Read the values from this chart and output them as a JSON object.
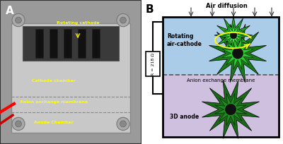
{
  "panel_a_label": "A",
  "panel_b_label": "B",
  "air_diffusion_label": "Air diffusion",
  "rotating_cathode_label": "Rotating\nair-cathode",
  "anion_membrane_label": "Anion exchange membrane",
  "anode_label": "3D anode",
  "resistance_label": "R = 218 Ω",
  "figure_bg": "#ffffff",
  "photo_bg": "#9a9a9a",
  "box_body_color": "#c8c8c8",
  "top_inside_color": "#3a3a3a",
  "top_chamber_color": "#aacce8",
  "bot_chamber_color": "#d0c0e0",
  "star_green_outer": "#1a7a1a",
  "star_green_inner": "#2dc82d",
  "star_black": "#111111",
  "star_green_outer2": "#1a6a1a",
  "star_green_inner2": "#228822",
  "dashed_color": "#555555",
  "resistor_fill": "#ffffff",
  "yellow_label": "#ffff00",
  "red_cable": "#cc0000"
}
